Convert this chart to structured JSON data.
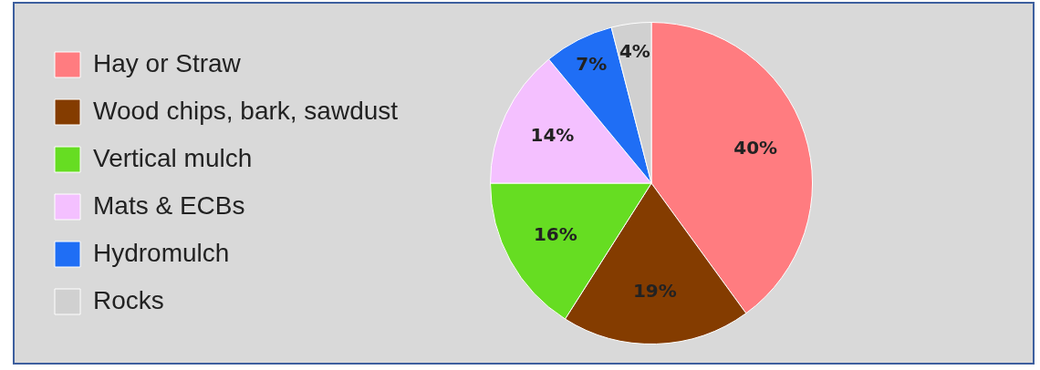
{
  "chart_data": {
    "type": "pie",
    "categories": [
      "Hay or Straw",
      "Wood chips, bark, sawdust",
      "Vertical mulch",
      "Mats & ECBs",
      "Hydromulch",
      "Rocks"
    ],
    "values": [
      40,
      19,
      16,
      14,
      7,
      4
    ],
    "value_labels": [
      "40%",
      "19%",
      "16%",
      "14%",
      "7%",
      "4%"
    ],
    "colors": [
      "#ff7c80",
      "#843c00",
      "#66dd22",
      "#f4c0ff",
      "#1f6ef5",
      "#d0d0d0"
    ],
    "legend": "left"
  }
}
